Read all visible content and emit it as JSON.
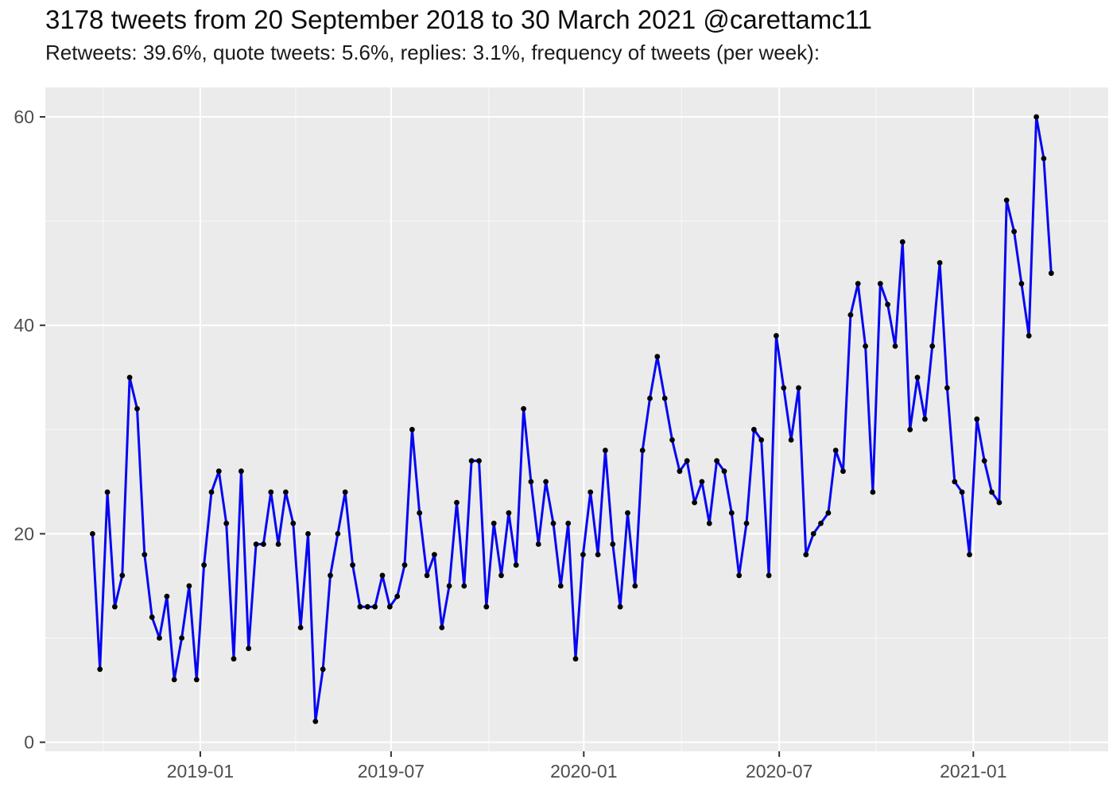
{
  "header": {
    "title": "3178 tweets from 20 September 2018 to 30 March 2021 @carettamc11",
    "subtitle": "Retweets: 39.6%, quote tweets: 5.6%, replies: 3.1%, frequency of tweets (per week):"
  },
  "chart_data": {
    "type": "line",
    "title": "3178 tweets from 20 September 2018 to 30 March 2021 @carettamc11",
    "subtitle": "Retweets: 39.6%, quote tweets: 5.6%, replies: 3.1%, frequency of tweets (per week):",
    "series_name": "tweets per week",
    "x_unit": "week index from 2018-09-23",
    "start_date": "2018-09-20",
    "end_date": "2021-03-30",
    "ylim": [
      0,
      63
    ],
    "grid": "on",
    "legend_position": "none",
    "y_major_ticks": [
      {
        "label": "0",
        "value": 0
      },
      {
        "label": "20",
        "value": 20
      },
      {
        "label": "40",
        "value": 40
      },
      {
        "label": "60",
        "value": 60
      }
    ],
    "y_minor_values": [
      10,
      30,
      50
    ],
    "x_major_ticks": [
      {
        "label": "2019-01",
        "week": 14.5
      },
      {
        "label": "2019-07",
        "week": 40.17
      },
      {
        "label": "2020-01",
        "week": 66.1
      },
      {
        "label": "2020-07",
        "week": 92.4
      },
      {
        "label": "2021-01",
        "week": 118.52
      }
    ],
    "x_minor_weeks": [
      1.45,
      27.33,
      53.32,
      79.25,
      105.43,
      131.55
    ],
    "values": [
      20,
      7,
      24,
      13,
      16,
      35,
      32,
      18,
      12,
      10,
      14,
      6,
      10,
      15,
      6,
      17,
      24,
      26,
      21,
      8,
      26,
      9,
      19,
      19,
      24,
      19,
      24,
      21,
      11,
      20,
      2,
      7,
      16,
      20,
      24,
      17,
      13,
      13,
      13,
      16,
      13,
      14,
      17,
      30,
      22,
      16,
      18,
      11,
      15,
      23,
      15,
      27,
      27,
      13,
      21,
      16,
      22,
      17,
      32,
      25,
      19,
      25,
      21,
      15,
      21,
      8,
      18,
      24,
      18,
      28,
      19,
      13,
      22,
      15,
      28,
      33,
      37,
      33,
      29,
      26,
      27,
      23,
      25,
      21,
      27,
      26,
      22,
      16,
      21,
      30,
      29,
      16,
      39,
      34,
      29,
      34,
      18,
      20,
      21,
      22,
      28,
      26,
      41,
      44,
      38,
      24,
      44,
      42,
      38,
      48,
      30,
      35,
      31,
      38,
      46,
      34,
      25,
      24,
      18,
      31,
      27,
      24,
      23,
      52,
      49,
      44,
      39,
      60,
      56,
      45
    ]
  },
  "colors": {
    "line": "#0606f2",
    "point": "#000000",
    "panel_bg": "#EBEBEB",
    "grid_major": "#FFFFFF",
    "grid_minor": "#FFFFFF",
    "tick_label": "#4D4D4D",
    "tick_mark": "#333333",
    "title_text": "#0d0d0d",
    "page_bg": "#FFFFFF"
  }
}
